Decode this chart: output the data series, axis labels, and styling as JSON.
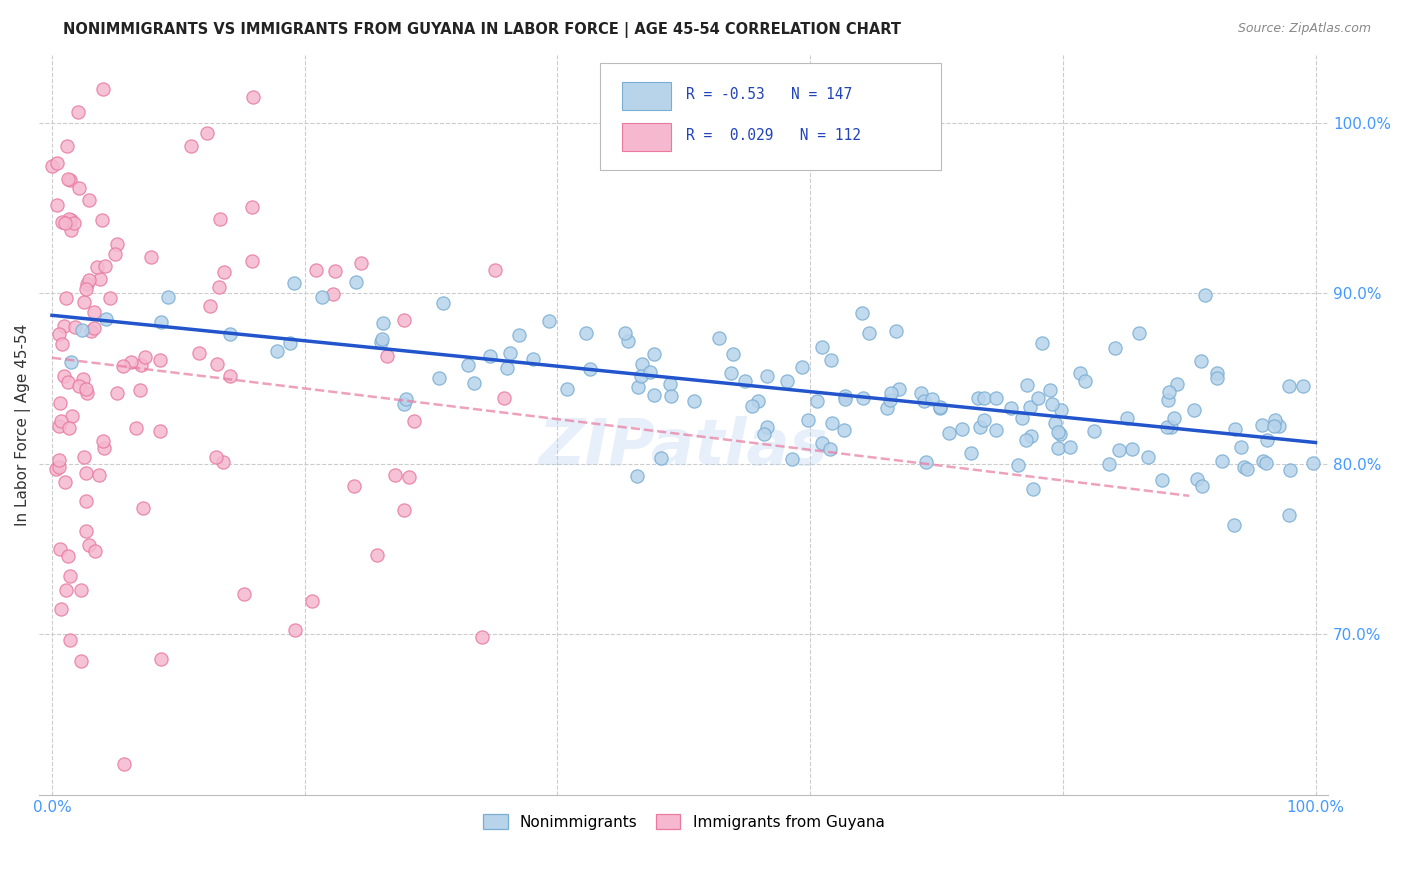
{
  "title": "NONIMMIGRANTS VS IMMIGRANTS FROM GUYANA IN LABOR FORCE | AGE 45-54 CORRELATION CHART",
  "source": "Source: ZipAtlas.com",
  "ylabel": "In Labor Force | Age 45-54",
  "watermark": "ZIPatlas",
  "blue_edge": "#7aadd4",
  "blue_fill": "#b8d4ea",
  "pink_edge": "#e87aa0",
  "pink_fill": "#f5b8ce",
  "trend_blue": "#2255cc",
  "trend_pink": "#e87aa0",
  "R_blue": -0.53,
  "N_blue": 147,
  "R_pink": 0.029,
  "N_pink": 112,
  "legend_label_blue": "Nonimmigrants",
  "legend_label_pink": "Immigrants from Guyana",
  "tick_color": "#4499FF",
  "grid_color": "#cccccc",
  "ylim_low": 0.605,
  "ylim_high": 1.04,
  "y_ticks": [
    0.7,
    0.8,
    0.9,
    1.0
  ],
  "y_tick_labels": [
    "70.0%",
    "80.0%",
    "90.0%",
    "100.0%"
  ]
}
